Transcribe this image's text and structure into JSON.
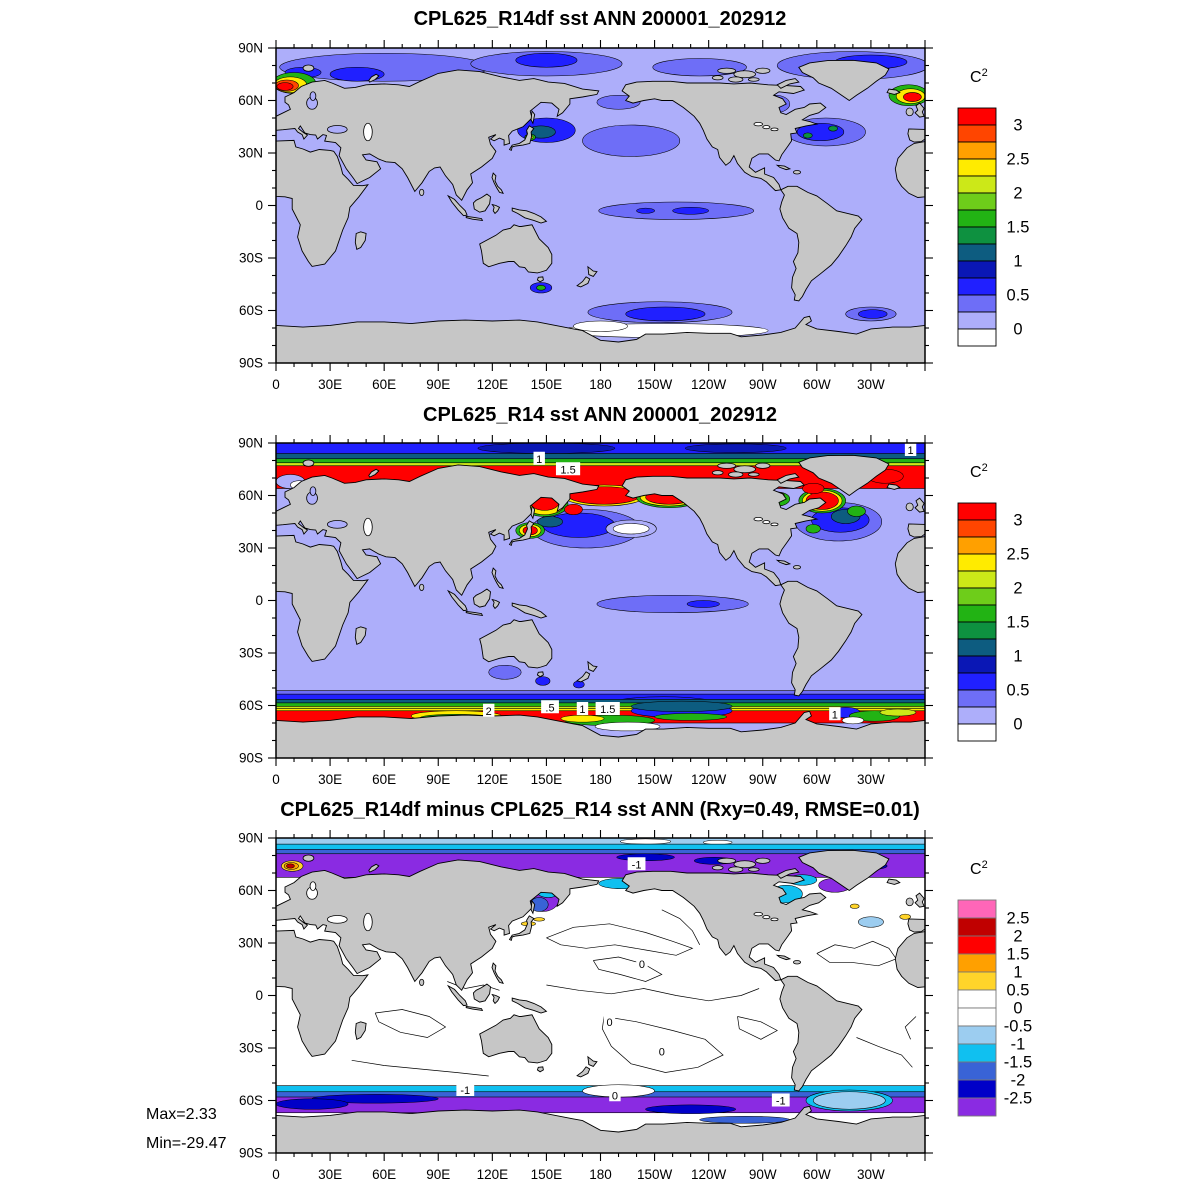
{
  "page": {
    "background": "#FFFFFF"
  },
  "stats": {
    "max_label": "Max=2.33",
    "min_label": "Min=-29.47"
  },
  "units": {
    "base": "C",
    "exponent": "2"
  },
  "axes": {
    "lat_ticks": [
      {
        "label": "90N",
        "lat": 90
      },
      {
        "label": "60N",
        "lat": 60
      },
      {
        "label": "30N",
        "lat": 30
      },
      {
        "label": "0",
        "lat": 0
      },
      {
        "label": "30S",
        "lat": -30
      },
      {
        "label": "60S",
        "lat": -60
      },
      {
        "label": "90S",
        "lat": -90
      }
    ],
    "lon_ticks": [
      {
        "label": "0",
        "lon": 0
      },
      {
        "label": "30E",
        "lon": 30
      },
      {
        "label": "60E",
        "lon": 60
      },
      {
        "label": "90E",
        "lon": 90
      },
      {
        "label": "120E",
        "lon": 120
      },
      {
        "label": "150E",
        "lon": 150
      },
      {
        "label": "180",
        "lon": 180
      },
      {
        "label": "150W",
        "lon": 210
      },
      {
        "label": "120W",
        "lon": 240
      },
      {
        "label": "90W",
        "lon": 270
      },
      {
        "label": "60W",
        "lon": 300
      },
      {
        "label": "30W",
        "lon": 330
      }
    ]
  },
  "map_colors": {
    "land": "#C6C6C6",
    "coast": "#000000",
    "ocean_variance": "#ADAEFA",
    "ocean_difference": "#FFFFFF"
  },
  "palettes": {
    "variance": {
      "colors_top_to_bottom": [
        "#FF0000",
        "#FF4500",
        "#FFA000",
        "#FFEB00",
        "#CCE818",
        "#6ECD1A",
        "#22B314",
        "#0E9140",
        "#0D5C80",
        "#0A17B5",
        "#2020FF",
        "#6E6EF7",
        "#ADAEFA",
        "#FFFFFF"
      ],
      "labels": [
        "3",
        "2.5",
        "2",
        "1.5",
        "1",
        "0.5",
        "0"
      ],
      "label_boundaries": [
        1,
        3,
        5,
        7,
        9,
        11,
        13
      ],
      "box_outline": "#000000"
    },
    "difference": {
      "colors_top_to_bottom": [
        "#FF66B8",
        "#C00000",
        "#FF0000",
        "#FFA000",
        "#FFD42A",
        "#FFFFFF",
        "#FFFFFF",
        "#9CCDF0",
        "#10C0F0",
        "#3963D6",
        "#0000C8",
        "#8A2BE2"
      ],
      "labels": [
        "2.5",
        "2",
        "1.5",
        "1",
        "0.5",
        "0",
        "-0.5",
        "-1",
        "-1.5",
        "-2",
        "-2.5"
      ],
      "label_boundaries": [
        1,
        2,
        3,
        4,
        5,
        6,
        7,
        8,
        9,
        10,
        11
      ],
      "box_outline": "#777777"
    }
  },
  "chart_data": [
    {
      "type": "filled-contour-map",
      "title": "CPL625_R14df sst ANN 200001_202912",
      "palette": "variance",
      "ocean": "#ADAEFA",
      "annotations": [],
      "features": [
        [
          "e",
          60,
          79,
          58,
          8,
          11
        ],
        [
          "e",
          150,
          81,
          42,
          7,
          11
        ],
        [
          "e",
          235,
          79,
          26,
          5,
          11
        ],
        [
          "e",
          320,
          80,
          42,
          8,
          11
        ],
        [
          "e",
          45,
          75,
          15,
          4,
          10
        ],
        [
          "e",
          15,
          76,
          10,
          3,
          10
        ],
        [
          "e",
          150,
          83,
          17,
          4,
          10
        ],
        [
          "e",
          330,
          82,
          20,
          4,
          10
        ],
        [
          "e",
          10,
          70,
          12,
          6,
          6
        ],
        [
          "e",
          8,
          69,
          9,
          4.5,
          3
        ],
        [
          "e",
          6,
          68.5,
          6.5,
          3.2,
          1
        ],
        [
          "e",
          5,
          68,
          4.5,
          2.2,
          0
        ],
        [
          "e",
          351,
          63,
          11,
          6,
          6
        ],
        [
          "e",
          352,
          62.5,
          8,
          4.2,
          3
        ],
        [
          "e",
          353,
          62,
          5,
          2.6,
          0
        ],
        [
          "e",
          190,
          59,
          12,
          4,
          11
        ],
        [
          "e",
          150,
          43,
          16,
          7,
          10
        ],
        [
          "e",
          147,
          42,
          8,
          3.5,
          8
        ],
        [
          "e",
          141,
          39,
          3,
          1.8,
          6
        ],
        [
          "e",
          141,
          39,
          1.6,
          1,
          3
        ],
        [
          "e",
          197,
          37,
          27,
          9,
          11
        ],
        [
          "e",
          305,
          42,
          22,
          8,
          11
        ],
        [
          "e",
          302,
          42,
          13,
          5,
          10
        ],
        [
          "e",
          295,
          40,
          2.5,
          1.5,
          7
        ],
        [
          "e",
          309,
          44,
          2.5,
          1.5,
          7
        ],
        [
          "e",
          277,
          58,
          8,
          5,
          11
        ],
        [
          "e",
          222,
          -3,
          43,
          5,
          11
        ],
        [
          "e",
          230,
          -3,
          10,
          2,
          10
        ],
        [
          "e",
          205,
          -3,
          5,
          1.5,
          10
        ],
        [
          "e",
          147,
          -47,
          6,
          3,
          10
        ],
        [
          "e",
          147,
          -47,
          2.5,
          1.4,
          6
        ],
        [
          "e",
          213,
          -61,
          40,
          6,
          11
        ],
        [
          "e",
          216,
          -62,
          22,
          4,
          10
        ],
        [
          "e",
          330,
          -62,
          14,
          4,
          11
        ],
        [
          "e",
          331,
          -62,
          8,
          2.5,
          10
        ],
        [
          "e",
          215,
          -71.5,
          58,
          4,
          13
        ],
        [
          "e",
          180,
          -69,
          15,
          3,
          13
        ]
      ]
    },
    {
      "type": "filled-contour-map",
      "title": "CPL625_R14 sst ANN 200001_202912",
      "palette": "variance",
      "ocean": "#ADAEFA",
      "annotations": [
        [
          "1",
          146,
          81
        ],
        [
          "1.5",
          162,
          75
        ],
        [
          "1",
          352,
          86
        ],
        [
          "2",
          118,
          -63
        ],
        [
          ".5",
          152,
          -61
        ],
        [
          "1",
          170,
          -62
        ],
        [
          "1.5",
          184,
          -62
        ],
        [
          "1",
          310,
          -65
        ]
      ],
      "features": [
        [
          "b",
          77,
          90,
          10
        ],
        [
          "e",
          150,
          87,
          38,
          3,
          9
        ],
        [
          "e",
          255,
          87,
          28,
          2.5,
          9
        ],
        [
          "b",
          80,
          84,
          8
        ],
        [
          "b",
          78,
          81,
          6
        ],
        [
          "b",
          76.5,
          78.7,
          4
        ],
        [
          "b",
          64,
          77,
          0
        ],
        [
          "e",
          8,
          68,
          8,
          4,
          12
        ],
        [
          "e",
          13,
          66,
          5,
          2.5,
          13
        ],
        [
          "e",
          22,
          64.5,
          6,
          3,
          6
        ],
        [
          "e",
          18,
          62.5,
          6,
          3,
          11
        ],
        [
          "e",
          172,
          41,
          30,
          11,
          11
        ],
        [
          "e",
          168,
          43,
          20,
          7,
          10
        ],
        [
          "e",
          197,
          41,
          14,
          5,
          12
        ],
        [
          "e",
          197,
          41,
          10,
          3,
          13
        ],
        [
          "e",
          152,
          45,
          7,
          3,
          8
        ],
        [
          "e",
          149,
          55,
          13,
          7,
          6
        ],
        [
          "e",
          149,
          55,
          11,
          6,
          3
        ],
        [
          "e",
          149,
          56,
          8,
          4.5,
          0
        ],
        [
          "e",
          141,
          40,
          8,
          4.5,
          6
        ],
        [
          "e",
          141,
          40,
          6,
          3.5,
          3
        ],
        [
          "e",
          141,
          40,
          4,
          2.5,
          0
        ],
        [
          "e",
          182,
          60,
          23,
          6,
          3
        ],
        [
          "e",
          182,
          60,
          20,
          5,
          0
        ],
        [
          "e",
          218,
          59,
          18,
          6,
          6
        ],
        [
          "e",
          218,
          59,
          16,
          5,
          3
        ],
        [
          "e",
          218,
          59,
          13,
          4,
          0
        ],
        [
          "e",
          165,
          52,
          5,
          3,
          0
        ],
        [
          "e",
          312,
          45,
          24,
          11,
          11
        ],
        [
          "e",
          313,
          46,
          16,
          7,
          10
        ],
        [
          "e",
          316,
          48,
          8,
          4,
          8
        ],
        [
          "e",
          298,
          41,
          4,
          2.5,
          6
        ],
        [
          "e",
          322,
          51,
          5,
          3,
          6
        ],
        [
          "e",
          303,
          57,
          13,
          7,
          6
        ],
        [
          "e",
          303,
          57,
          11,
          6,
          3
        ],
        [
          "e",
          303,
          57,
          9,
          5,
          0
        ],
        [
          "e",
          278,
          58,
          7,
          4,
          6
        ],
        [
          "e",
          278,
          60,
          4,
          2,
          0
        ],
        [
          "e",
          338,
          71,
          10,
          4,
          0
        ],
        [
          "e",
          298,
          64,
          6,
          3,
          0
        ],
        [
          "e",
          220,
          -2,
          42,
          5,
          11
        ],
        [
          "e",
          237,
          -2,
          9,
          2,
          10
        ],
        [
          "e",
          127,
          -41,
          9,
          4,
          11
        ],
        [
          "e",
          148,
          -46,
          4,
          2.5,
          10
        ],
        [
          "e",
          168,
          -48,
          3,
          2,
          10
        ],
        [
          "b",
          -56,
          -51.5,
          11
        ],
        [
          "b",
          -58,
          -53.5,
          10
        ],
        [
          "e",
          215,
          -60,
          32,
          5,
          10
        ],
        [
          "b",
          -59.5,
          -56.5,
          8
        ],
        [
          "b",
          -62,
          -58.5,
          6
        ],
        [
          "b",
          -63.5,
          -60.5,
          4
        ],
        [
          "b",
          -64.5,
          -61.8,
          3
        ],
        [
          "b",
          -70,
          -63,
          0
        ],
        [
          "e",
          225,
          -63,
          28,
          4,
          10
        ],
        [
          "e",
          225,
          -60.5,
          28,
          3,
          8
        ],
        [
          "e",
          230,
          -66.5,
          20,
          2,
          6
        ],
        [
          "e",
          100,
          -66,
          25,
          3,
          3
        ],
        [
          "e",
          100,
          -67,
          20,
          2,
          6
        ],
        [
          "e",
          185,
          -68.5,
          25,
          3,
          6
        ],
        [
          "e",
          170,
          -67.5,
          12,
          2,
          3
        ],
        [
          "e",
          195,
          -72,
          18,
          2.5,
          13
        ],
        [
          "e",
          316,
          -64,
          8,
          3,
          10
        ],
        [
          "e",
          332,
          -66,
          14,
          3,
          6
        ],
        [
          "e",
          345,
          -64,
          10,
          2,
          4
        ],
        [
          "e",
          320,
          -68.5,
          6,
          2,
          13
        ]
      ]
    },
    {
      "type": "filled-contour-map",
      "title": "CPL625_R14df minus CPL625_R14 sst ANN (Rxy=0.49, RMSE=0.01)",
      "palette": "difference",
      "ocean": "#FFFFFF",
      "annotations": [
        [
          "-1",
          200,
          75
        ],
        [
          "0",
          203,
          18
        ],
        [
          "0",
          185,
          -15
        ],
        [
          "0",
          214,
          -32
        ],
        [
          "-1",
          105,
          -54
        ],
        [
          "0",
          188,
          -57
        ],
        [
          "-1",
          280,
          -60
        ]
      ],
      "features": [
        [
          "b",
          85.5,
          90,
          7
        ],
        [
          "e",
          205,
          88,
          14,
          1.5,
          5
        ],
        [
          "e",
          245,
          87.5,
          8,
          1.2,
          5
        ],
        [
          "b",
          82.5,
          86.5,
          8
        ],
        [
          "b",
          80,
          83.5,
          9
        ],
        [
          "b",
          67.5,
          81,
          11
        ],
        [
          "e",
          205,
          79,
          16,
          2,
          10
        ],
        [
          "e",
          243,
          77,
          11,
          2,
          10
        ],
        [
          "e",
          330,
          74,
          9,
          2,
          10
        ],
        [
          "e",
          9,
          74,
          6,
          3,
          4
        ],
        [
          "e",
          8.5,
          74,
          4,
          2,
          3
        ],
        [
          "e",
          8,
          74,
          2.2,
          1.2,
          1
        ],
        [
          "e",
          192,
          64,
          13,
          3,
          8
        ],
        [
          "e",
          148,
          55,
          9,
          7,
          11
        ],
        [
          "e",
          146,
          52,
          5,
          4,
          9
        ],
        [
          "e",
          151,
          59,
          6,
          3,
          8
        ],
        [
          "e",
          140,
          41,
          4,
          1.2,
          4
        ],
        [
          "e",
          146,
          43.5,
          3,
          1,
          4
        ],
        [
          "e",
          283,
          58,
          9,
          5,
          8
        ],
        [
          "e",
          292,
          66,
          8,
          3,
          8
        ],
        [
          "e",
          310,
          63,
          9,
          4,
          11
        ],
        [
          "e",
          349,
          45,
          3,
          1.5,
          4
        ],
        [
          "e",
          321,
          51,
          2.5,
          1.3,
          4
        ],
        [
          "e",
          330,
          42,
          7,
          3,
          7
        ],
        [
          "b",
          -56.5,
          -51.5,
          8
        ],
        [
          "b",
          -59,
          -55,
          9
        ],
        [
          "b",
          -67,
          -58,
          11
        ],
        [
          "e",
          55,
          -59,
          35,
          2.5,
          10
        ],
        [
          "e",
          230,
          -65,
          25,
          2.5,
          10
        ],
        [
          "e",
          20,
          -62,
          20,
          3,
          10
        ],
        [
          "e",
          318,
          -60,
          24,
          6,
          8
        ],
        [
          "e",
          318,
          -60,
          20,
          5,
          7
        ],
        [
          "e",
          190,
          -54.5,
          20,
          3.5,
          5
        ],
        [
          "e",
          140,
          -70,
          15,
          2,
          8
        ],
        [
          "e",
          260,
          -71,
          25,
          2,
          9
        ]
      ]
    }
  ]
}
